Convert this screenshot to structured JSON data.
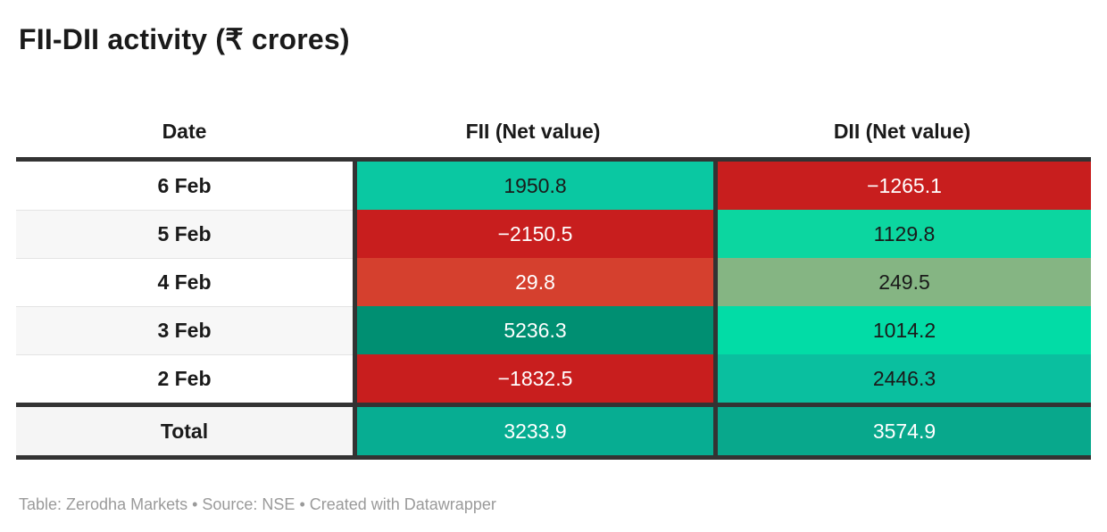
{
  "title": "FII-DII activity (₹ crores)",
  "table": {
    "columns": [
      "Date",
      "FII (Net value)",
      "DII (Net value)"
    ],
    "rows": [
      {
        "date": "6 Feb",
        "row_bg": "#ffffff",
        "fii": "1950.8",
        "fii_bg": "#0ac8a2",
        "fii_fg": "#1a1a1a",
        "dii": "−1265.1",
        "dii_bg": "#c81e1e",
        "dii_fg": "#ffffff"
      },
      {
        "date": "5 Feb",
        "row_bg": "#f7f7f7",
        "fii": "−2150.5",
        "fii_bg": "#c81e1e",
        "fii_fg": "#ffffff",
        "dii": "1129.8",
        "dii_bg": "#0cd6a0",
        "dii_fg": "#1a1a1a"
      },
      {
        "date": "4 Feb",
        "row_bg": "#ffffff",
        "fii": "29.8",
        "fii_bg": "#d5402e",
        "fii_fg": "#ffffff",
        "dii": "249.5",
        "dii_bg": "#85b583",
        "dii_fg": "#1a1a1a"
      },
      {
        "date": "3 Feb",
        "row_bg": "#f7f7f7",
        "fii": "5236.3",
        "fii_bg": "#008f72",
        "fii_fg": "#ffffff",
        "dii": "1014.2",
        "dii_bg": "#02dca6",
        "dii_fg": "#1a1a1a"
      },
      {
        "date": "2 Feb",
        "row_bg": "#ffffff",
        "fii": "−1832.5",
        "fii_bg": "#c81e1e",
        "fii_fg": "#ffffff",
        "dii": "2446.3",
        "dii_bg": "#0abf9f",
        "dii_fg": "#1a1a1a"
      }
    ],
    "total": {
      "label": "Total",
      "row_bg": "#f5f5f5",
      "fii": "3233.9",
      "fii_bg": "#07ad92",
      "fii_fg": "#ffffff",
      "dii": "3574.9",
      "dii_bg": "#08a88c",
      "dii_fg": "#ffffff"
    }
  },
  "footer": {
    "text": "Table: Zerodha Markets • Source: NSE • Created with Datawrapper"
  },
  "colors": {
    "border_dark": "#333333",
    "row_separator": "#e4e4e4",
    "title_fg": "#1a1a1a",
    "footer_fg": "#9a9a9a"
  },
  "chart_data": {
    "type": "table",
    "title": "FII-DII activity (₹ crores)",
    "columns": [
      "Date",
      "FII (Net value)",
      "DII (Net value)"
    ],
    "rows": [
      [
        "6 Feb",
        1950.8,
        -1265.1
      ],
      [
        "5 Feb",
        -2150.5,
        1129.8
      ],
      [
        "4 Feb",
        29.8,
        249.5
      ],
      [
        "3 Feb",
        5236.3,
        1014.2
      ],
      [
        "2 Feb",
        -1832.5,
        2446.3
      ],
      [
        "Total",
        3233.9,
        3574.9
      ]
    ],
    "notes": "Datawrapper-style heatmap table; cell background encodes value: greens = positive (darker/brighter by magnitude), reds = negative",
    "source": "Table: Zerodha Markets • Source: NSE • Created with Datawrapper"
  }
}
